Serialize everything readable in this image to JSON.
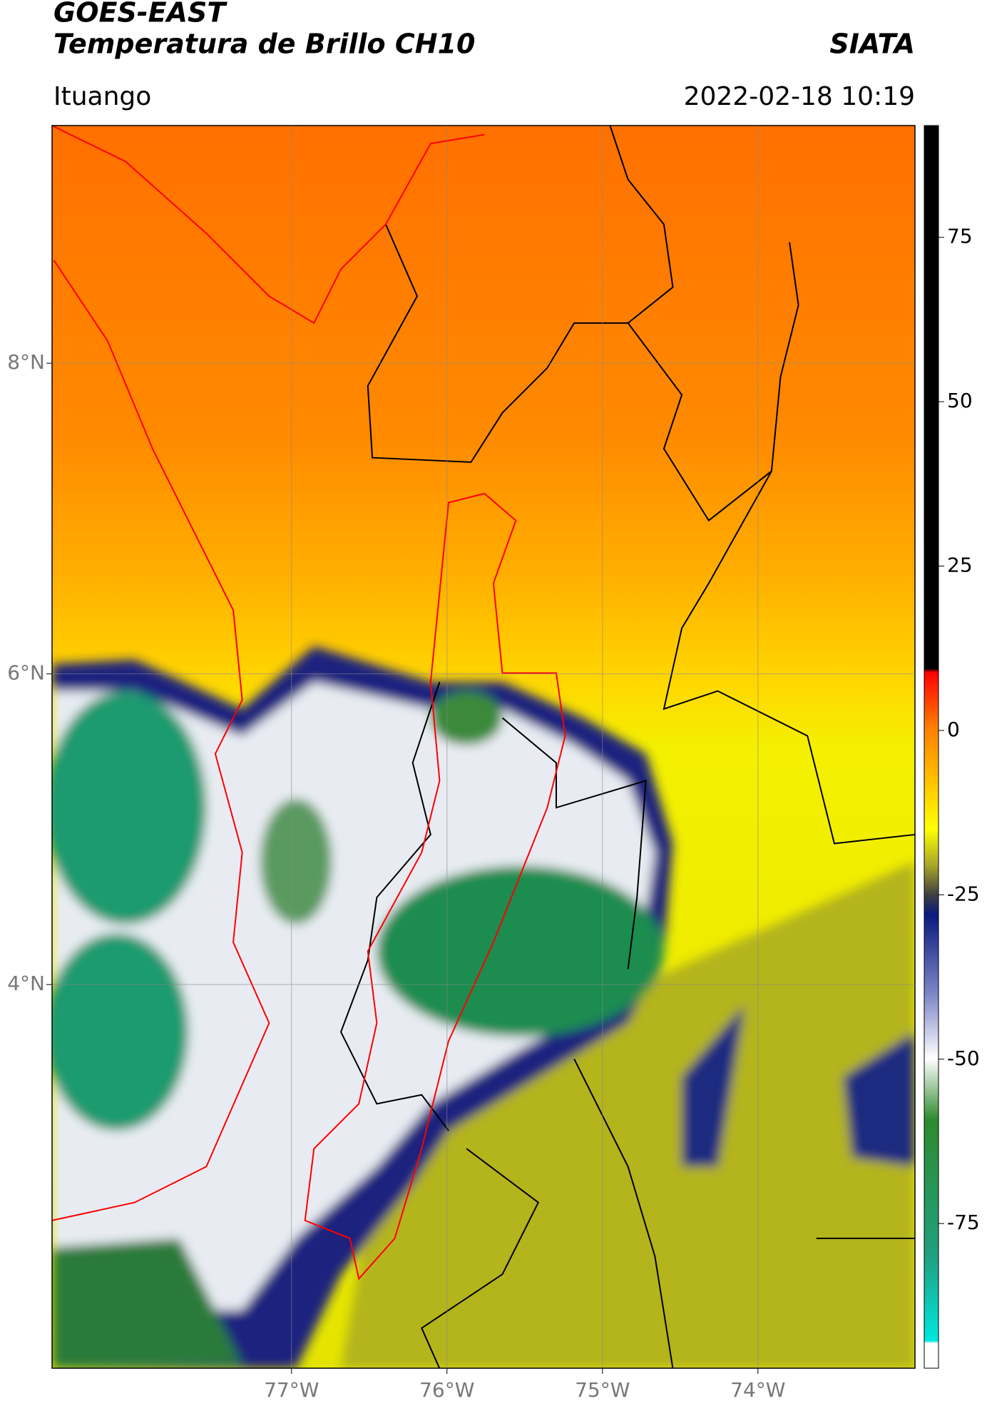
{
  "header": {
    "title": "GOES-EAST",
    "subtitle": "Temperatura de Brillo CH10",
    "source": "SIATA",
    "location": "Ituango",
    "datetime": "2022-02-18 10:19"
  },
  "map": {
    "xlim": [
      -78.54,
      -72.99
    ],
    "ylim": [
      1.53,
      9.53
    ],
    "grid": true,
    "xticks": [
      {
        "value": -77,
        "label": "77°W"
      },
      {
        "value": -76,
        "label": "76°W"
      },
      {
        "value": -75,
        "label": "75°W"
      },
      {
        "value": -74,
        "label": "74°W"
      }
    ],
    "yticks": [
      {
        "value": 4,
        "label": "4°N"
      },
      {
        "value": 6,
        "label": "6°N"
      },
      {
        "value": 8,
        "label": "8°N"
      }
    ]
  },
  "colorbar": {
    "lim": [
      -97,
      92
    ],
    "ticks": [
      -75,
      -50,
      -25,
      0,
      25,
      50,
      75
    ]
  }
}
